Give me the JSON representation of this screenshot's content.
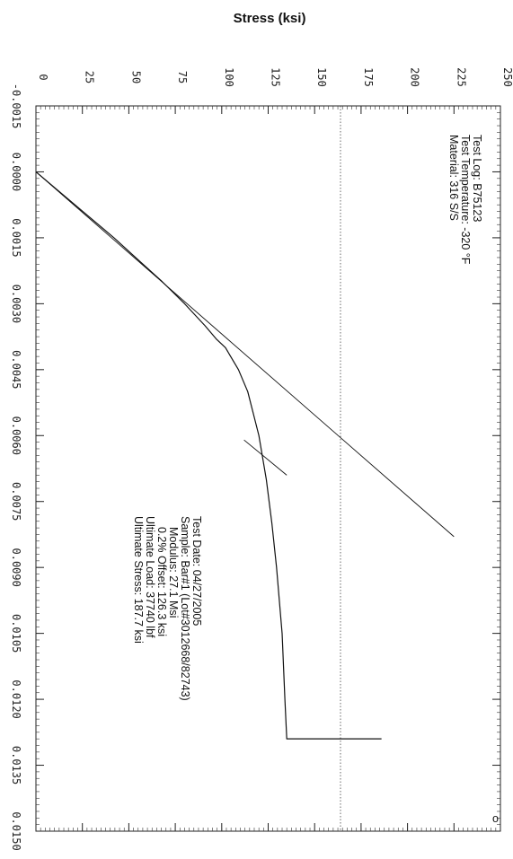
{
  "chart_data": {
    "type": "line",
    "title": "",
    "ylabel": "Stress (ksi)",
    "xlabel": "",
    "xlim": [
      -0.0015,
      0.015
    ],
    "ylim": [
      0,
      250
    ],
    "x_ticks": [
      "-0.0015",
      "0.0000",
      "0.0015",
      "0.0030",
      "0.0045",
      "0.0060",
      "0.0075",
      "0.0090",
      "0.0105",
      "0.0120",
      "0.0135",
      "0.0150"
    ],
    "y_ticks": [
      "0",
      "25",
      "50",
      "75",
      "100",
      "125",
      "150",
      "175",
      "200",
      "225",
      "250"
    ],
    "rotation": "rotated 90 degrees clockwise",
    "grid": false,
    "series": [
      {
        "role": "stress-strain curve",
        "x": [
          0.0,
          0.0005,
          0.001,
          0.0015,
          0.002,
          0.0025,
          0.003,
          0.0035,
          0.0038,
          0.004,
          0.0045,
          0.005,
          0.0055,
          0.006,
          0.0065,
          0.007,
          0.0075,
          0.008,
          0.009,
          0.0105,
          0.012,
          0.0129,
          0.0129
        ],
        "y": [
          0,
          14,
          28,
          42,
          55,
          68,
          80,
          91,
          97,
          102,
          109,
          114,
          117,
          120,
          122,
          124,
          125.5,
          127,
          129.5,
          132.5,
          134,
          135,
          186
        ]
      },
      {
        "role": "modulus line",
        "x": [
          0.0,
          0.0083
        ],
        "y": [
          0,
          225
        ]
      },
      {
        "role": "0.2% offset line",
        "x": [
          0.0061,
          0.0069
        ],
        "y": [
          112,
          135
        ]
      }
    ],
    "annotations": {
      "material_box": [
        "Test Log: B75123",
        "Test Temperature: -320 °F",
        "Material: 316 S/S"
      ],
      "results_box": [
        "Test Date: 04/27/2005",
        "Sample: Bar#1 (Lot#3012668/82743)",
        "Modulus: 27.1 Msi",
        "0.2% Offset: 126.3 ksi",
        "Ultimate Load: 37740 lbf",
        "Ultimate Stress: 187.7 ksi"
      ],
      "corner_mark": "o"
    }
  }
}
